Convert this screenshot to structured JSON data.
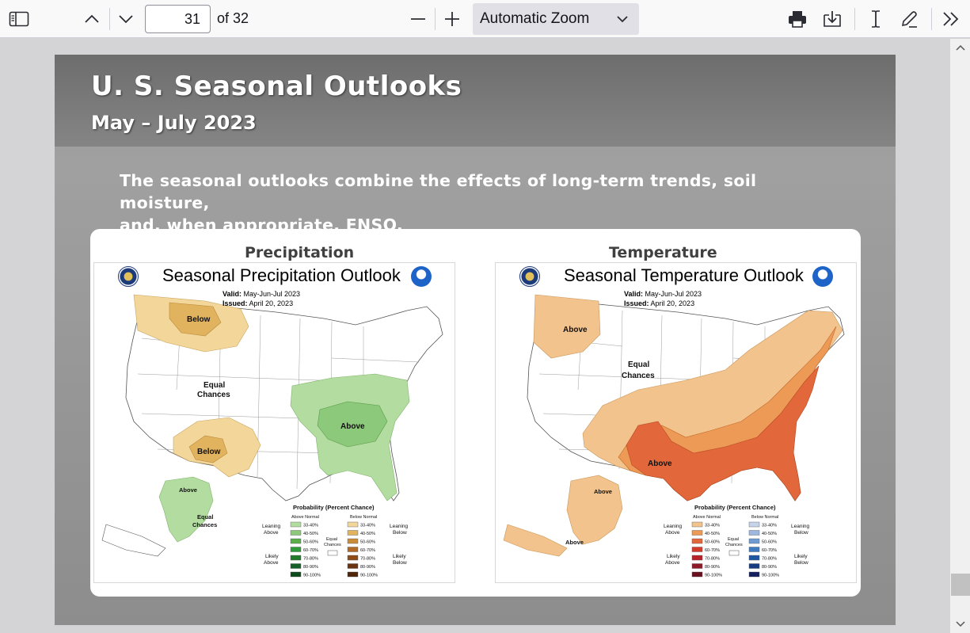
{
  "toolbar": {
    "current_page": "31",
    "page_count_text": "of 32",
    "zoom_label": "Automatic Zoom"
  },
  "slide": {
    "title": "U. S. Seasonal Outlooks",
    "subtitle": "May – July 2023",
    "intro_line1": "The seasonal outlooks combine the effects of long-term trends, soil moisture,",
    "intro_line2": "and, when appropriate, ENSO.",
    "precip": {
      "heading": "Precipitation",
      "map_title": "Seasonal Precipitation Outlook",
      "valid_label": "Valid:",
      "valid_value": "May-Jun-Jul 2023",
      "issued_label": "Issued:",
      "issued_value": "April 20, 2023",
      "region_labels": {
        "below_nw": "Below",
        "equal1": "Equal",
        "equal2": "Chances",
        "above_se": "Above",
        "below_sw": "Below",
        "above_ak": "Above",
        "equal_ak1": "Equal",
        "equal_ak2": "Chances"
      }
    },
    "temp": {
      "heading": "Temperature",
      "map_title": "Seasonal Temperature Outlook",
      "valid_label": "Valid:",
      "valid_value": "May-Jun-Jul 2023",
      "issued_label": "Issued:",
      "issued_value": "April 20, 2023",
      "region_labels": {
        "above_nw": "Above",
        "equal1": "Equal",
        "equal2": "Chances",
        "above_s": "Above",
        "above_ak1": "Above",
        "above_ak2": "Above"
      }
    },
    "legend": {
      "title": "Probability (Percent Chance)",
      "above_normal": "Above Normal",
      "below_normal": "Below Normal",
      "equal1": "Equal",
      "equal2": "Chances",
      "leaning_above1": "Leaning",
      "leaning_above2": "Above",
      "likely_above1": "Likely",
      "likely_above2": "Above",
      "leaning_below1": "Leaning",
      "leaning_below2": "Below",
      "likely_below1": "Likely",
      "likely_below2": "Below",
      "ranges": [
        "33-40%",
        "40-50%",
        "50-60%",
        "60-70%",
        "70-80%",
        "80-90%",
        "90-100%"
      ]
    },
    "colors": {
      "precip_above": [
        "#b3dca0",
        "#8dc97a",
        "#5aaf4a",
        "#2f9a3a",
        "#237a2c",
        "#17602a",
        "#0d4a1c"
      ],
      "precip_below": [
        "#f3d79a",
        "#e2b35e",
        "#cb8c3a",
        "#b36a26",
        "#8e4d18",
        "#6a3410",
        "#4f2408"
      ],
      "temp_above": [
        "#f2c38c",
        "#ec9a55",
        "#e2673a",
        "#d33a2a",
        "#b8232a",
        "#8f1a2a",
        "#6a1020"
      ],
      "temp_below": [
        "#c6d4ea",
        "#9db7de",
        "#6f9bd2",
        "#3f79c0",
        "#1f56a2",
        "#183c82",
        "#14205e"
      ]
    }
  }
}
